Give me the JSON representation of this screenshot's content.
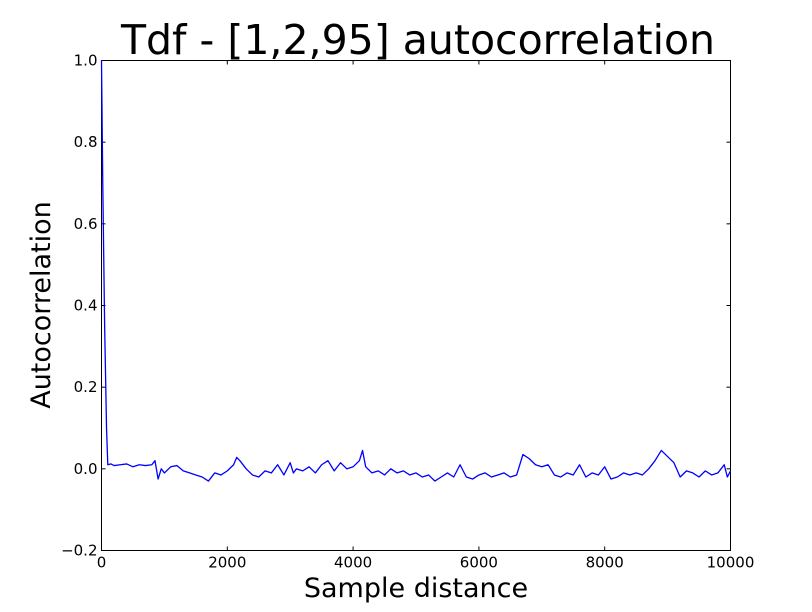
{
  "chart_data": {
    "type": "line",
    "title": "Tdf - [1,2,95] autocorrelation",
    "xlabel": "Sample distance",
    "ylabel": "Autocorrelation",
    "xlim": [
      0,
      10000
    ],
    "ylim": [
      -0.2,
      1.0
    ],
    "x_ticks": [
      0,
      2000,
      4000,
      6000,
      8000,
      10000
    ],
    "x_tick_labels": [
      "0",
      "2000",
      "4000",
      "6000",
      "8000",
      "10000"
    ],
    "y_ticks": [
      -0.2,
      0.0,
      0.2,
      0.4,
      0.6,
      0.8,
      1.0
    ],
    "y_tick_labels": [
      "−0.2",
      "0.0",
      "0.2",
      "0.4",
      "0.6",
      "0.8",
      "1.0"
    ],
    "grid": false,
    "legend": "none",
    "series": [
      {
        "color": "#0000ff",
        "x": [
          0,
          20,
          50,
          80,
          100,
          150,
          200,
          300,
          400,
          500,
          600,
          700,
          800,
          850,
          900,
          950,
          1000,
          1100,
          1200,
          1300,
          1400,
          1500,
          1600,
          1700,
          1800,
          1900,
          2000,
          2100,
          2150,
          2200,
          2300,
          2400,
          2500,
          2600,
          2700,
          2800,
          2900,
          3000,
          3050,
          3100,
          3200,
          3300,
          3400,
          3500,
          3600,
          3700,
          3800,
          3900,
          4000,
          4100,
          4150,
          4200,
          4300,
          4400,
          4500,
          4600,
          4700,
          4800,
          4900,
          5000,
          5100,
          5200,
          5300,
          5400,
          5500,
          5600,
          5700,
          5800,
          5900,
          6000,
          6100,
          6200,
          6300,
          6400,
          6500,
          6600,
          6700,
          6800,
          6900,
          7000,
          7100,
          7200,
          7300,
          7400,
          7500,
          7600,
          7700,
          7800,
          7900,
          8000,
          8100,
          8200,
          8300,
          8400,
          8500,
          8600,
          8700,
          8800,
          8900,
          9000,
          9100,
          9200,
          9300,
          9400,
          9500,
          9600,
          9700,
          9800,
          9900,
          9950,
          10000
        ],
        "y": [
          1.0,
          0.7,
          0.35,
          0.1,
          0.01,
          0.012,
          0.008,
          0.01,
          0.012,
          0.005,
          0.01,
          0.008,
          0.01,
          0.02,
          -0.025,
          0.0,
          -0.01,
          0.005,
          0.008,
          -0.005,
          -0.01,
          -0.015,
          -0.02,
          -0.03,
          -0.01,
          -0.015,
          -0.005,
          0.01,
          0.028,
          0.02,
          0.0,
          -0.015,
          -0.02,
          -0.005,
          -0.01,
          0.01,
          -0.015,
          0.015,
          -0.01,
          0.0,
          -0.005,
          0.005,
          -0.01,
          0.01,
          0.02,
          -0.005,
          0.015,
          0.0,
          0.005,
          0.02,
          0.045,
          0.005,
          -0.01,
          -0.005,
          -0.015,
          0.0,
          -0.01,
          -0.005,
          -0.015,
          -0.01,
          -0.02,
          -0.015,
          -0.03,
          -0.02,
          -0.01,
          -0.02,
          0.01,
          -0.02,
          -0.025,
          -0.015,
          -0.01,
          -0.02,
          -0.015,
          -0.01,
          -0.02,
          -0.015,
          0.035,
          0.025,
          0.01,
          0.005,
          0.01,
          -0.015,
          -0.02,
          -0.01,
          -0.015,
          0.01,
          -0.02,
          -0.01,
          -0.015,
          0.005,
          -0.025,
          -0.02,
          -0.01,
          -0.015,
          -0.01,
          -0.015,
          0.0,
          0.02,
          0.045,
          0.03,
          0.015,
          -0.02,
          -0.005,
          -0.01,
          -0.02,
          -0.005,
          -0.015,
          -0.01,
          0.01,
          -0.02,
          -0.005
        ]
      }
    ]
  }
}
